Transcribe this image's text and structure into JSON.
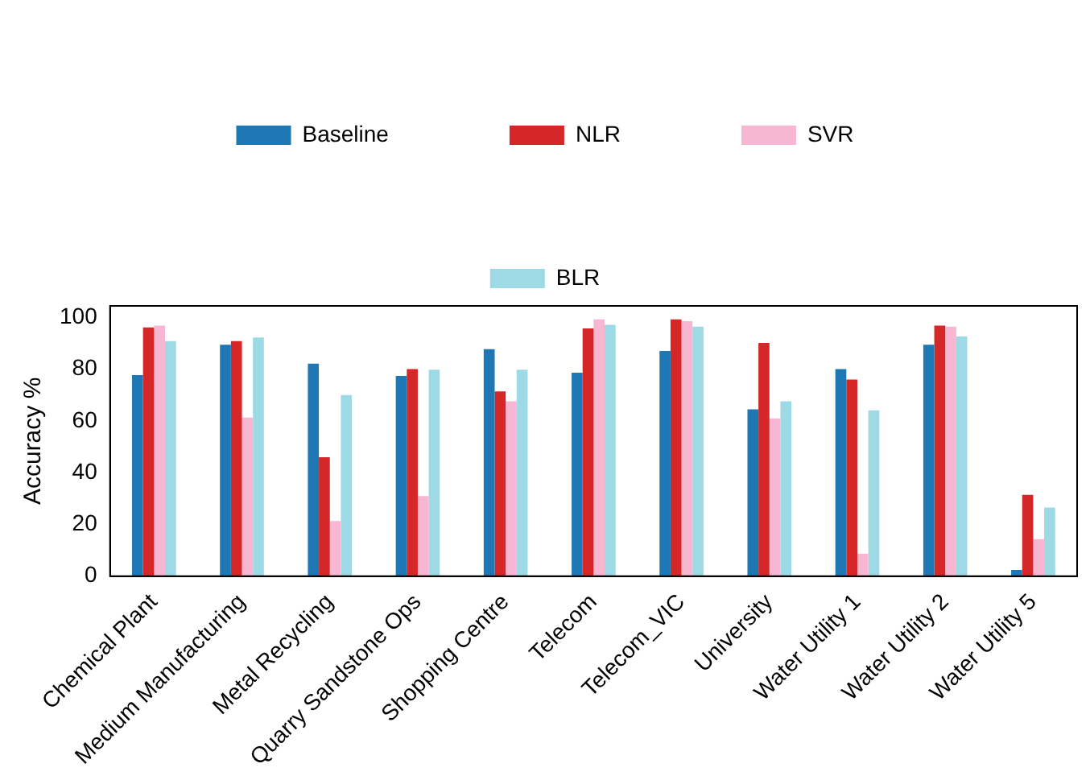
{
  "chart_data": {
    "type": "bar",
    "ylabel": "Accuracy %",
    "categories": [
      "Chemical Plant",
      "Medium Manufacturing",
      "Metal Recycling",
      "Quarry Sandstone Ops",
      "Shopping Centre",
      "Telecom",
      "Telecom_VIC",
      "University",
      "Water Utility 1",
      "Water Utility 2",
      "Water Utility 5"
    ],
    "series": [
      {
        "name": "Baseline",
        "color": "#1f77b4",
        "values": [
          77.7,
          89.5,
          82.2,
          77.4,
          87.8,
          78.7,
          87.1,
          64.5,
          80.1,
          89.5,
          2.4
        ]
      },
      {
        "name": "NLR",
        "color": "#d62728",
        "values": [
          96.2,
          90.9,
          46.0,
          80.1,
          71.4,
          95.8,
          99.3,
          90.2,
          76.0,
          96.9,
          31.4
        ]
      },
      {
        "name": "SVR",
        "color": "#f7b6d2",
        "values": [
          96.9,
          61.3,
          21.3,
          31.0,
          67.6,
          99.3,
          98.6,
          61.0,
          8.7,
          96.5,
          14.3
        ]
      },
      {
        "name": "BLR",
        "color": "#9edae5",
        "values": [
          90.9,
          92.3,
          70.0,
          79.8,
          79.8,
          97.2,
          96.5,
          67.6,
          64.1,
          92.7,
          26.5
        ]
      }
    ],
    "ylim": [
      0,
      104.5
    ],
    "yticks": [
      0,
      20,
      40,
      60,
      80,
      100
    ],
    "grid": false,
    "legend": "top"
  }
}
